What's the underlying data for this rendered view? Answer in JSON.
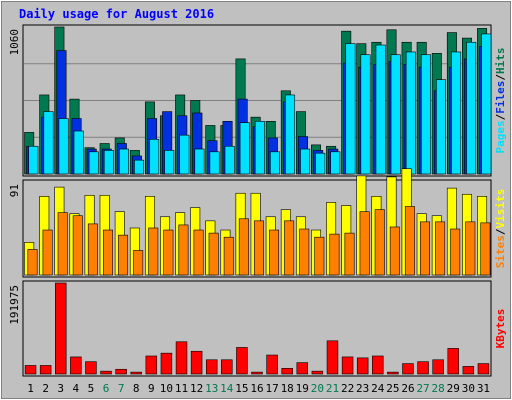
{
  "chart_data": {
    "title": "Daily usage for August 2016",
    "x": [
      "1",
      "2",
      "3",
      "4",
      "5",
      "6",
      "7",
      "8",
      "9",
      "10",
      "11",
      "12",
      "13",
      "14",
      "15",
      "16",
      "17",
      "18",
      "19",
      "20",
      "21",
      "22",
      "23",
      "24",
      "25",
      "26",
      "27",
      "28",
      "29",
      "30",
      "31"
    ],
    "weekend_days": [
      "6",
      "7",
      "13",
      "14",
      "20",
      "21",
      "27",
      "28"
    ],
    "panels": [
      {
        "type": "bar",
        "ytick": "1060",
        "ymax": 1060,
        "series": [
          {
            "name": "Hits",
            "color": "#007850",
            "values": [
              300,
              570,
              1060,
              540,
              190,
              220,
              260,
              170,
              520,
              420,
              570,
              530,
              350,
              350,
              830,
              410,
              380,
              600,
              450,
              210,
              200,
              1030,
              940,
              950,
              1040,
              950,
              950,
              870,
              1020,
              980,
              1050
            ]
          },
          {
            "name": "Files",
            "color": "#0030e0",
            "values": [
              200,
              410,
              890,
              400,
              180,
              180,
              220,
              130,
              400,
              450,
              420,
              440,
              240,
              380,
              540,
              340,
              260,
              520,
              270,
              170,
              180,
              800,
              770,
              790,
              810,
              790,
              770,
              600,
              770,
              830,
              920
            ]
          },
          {
            "name": "Pages",
            "color": "#00e0ff",
            "values": [
              200,
              450,
              400,
              310,
              160,
              170,
              180,
              100,
              250,
              170,
              280,
              180,
              160,
              200,
              370,
              380,
              160,
              570,
              180,
              150,
              160,
              940,
              860,
              930,
              860,
              880,
              860,
              680,
              880,
              950,
              1010
            ]
          }
        ]
      },
      {
        "type": "bar",
        "ytick": "91",
        "ymax": 91,
        "series": [
          {
            "name": "Visits",
            "color": "#ffff00",
            "values": [
              32,
              77,
              86,
              60,
              78,
              78,
              62,
              46,
              77,
              57,
              61,
              66,
              53,
              44,
              80,
              80,
              57,
              64,
              57,
              44,
              71,
              68,
              97,
              77,
              96,
              104,
              60,
              58,
              85,
              79,
              77
            ]
          },
          {
            "name": "Sites",
            "color": "#ff8000",
            "values": [
              25,
              44,
              61,
              58,
              50,
              44,
              39,
              24,
              46,
              44,
              49,
              44,
              41,
              37,
              55,
              53,
              44,
              53,
              45,
              37,
              40,
              41,
              62,
              64,
              47,
              67,
              52,
              52,
              45,
              52,
              51
            ]
          }
        ]
      },
      {
        "type": "bar",
        "ytick": "191975",
        "ymax": 191975,
        "series": [
          {
            "name": "KBytes",
            "color": "#ff0000",
            "values": [
              18000,
              18000,
              191975,
              36000,
              26000,
              6000,
              10000,
              4000,
              38000,
              44000,
              68000,
              48000,
              30000,
              30000,
              56000,
              4000,
              40000,
              12000,
              24000,
              6000,
              70000,
              36000,
              34000,
              38000,
              4000,
              22000,
              26000,
              30000,
              54000,
              16000,
              22000
            ]
          }
        ]
      }
    ],
    "right_labels": [
      {
        "parts": [
          "Pages",
          "/",
          "Files",
          "/",
          "Hits"
        ],
        "colors": [
          "#00e0ff",
          "#000000",
          "#0030e0",
          "#000000",
          "#007850"
        ]
      },
      {
        "parts": [
          "Sites",
          "/",
          "Visits"
        ],
        "colors": [
          "#ff8000",
          "#000000",
          "#ffff00"
        ]
      },
      {
        "parts": [
          "KBytes"
        ],
        "colors": [
          "#ff0000"
        ]
      }
    ],
    "colors": {
      "title": "#0000ff",
      "weekday_label": "#000000",
      "weekend_label": "#007850",
      "plot_bg": "#c0c0c0",
      "gridline": "#808080"
    }
  }
}
